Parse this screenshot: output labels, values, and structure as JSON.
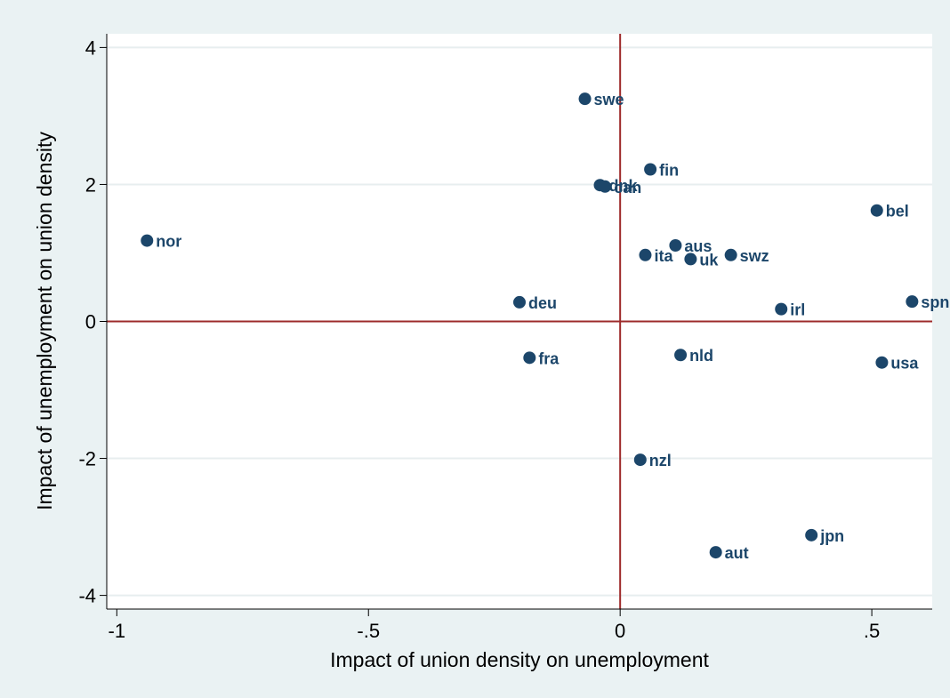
{
  "chart_data": {
    "type": "scatter",
    "title": "",
    "xlabel": "Impact of union density on unemployment",
    "ylabel": "Impact of unemployment on union density",
    "xlim": [
      -1.02,
      0.62
    ],
    "ylim": [
      -4.2,
      4.2
    ],
    "x_ticks": [
      {
        "value": -1,
        "label": "-1"
      },
      {
        "value": -0.5,
        "label": "-.5"
      },
      {
        "value": 0,
        "label": "0"
      },
      {
        "value": 0.5,
        "label": ".5"
      }
    ],
    "y_ticks": [
      {
        "value": 4,
        "label": "4"
      },
      {
        "value": 2,
        "label": "2"
      },
      {
        "value": 0,
        "label": "0"
      },
      {
        "value": -2,
        "label": "-2"
      },
      {
        "value": -4,
        "label": "-4"
      }
    ],
    "reference_lines": {
      "x": 0,
      "y": 0,
      "color": "#9e2b2b"
    },
    "grid": true,
    "marker_color": "#1c466a",
    "points": [
      {
        "label": "swe",
        "x": -0.07,
        "y": 3.25
      },
      {
        "label": "fin",
        "x": 0.06,
        "y": 2.22
      },
      {
        "label": "dnk",
        "x": -0.04,
        "y": 1.99
      },
      {
        "label": "can",
        "x": -0.03,
        "y": 1.97
      },
      {
        "label": "bel",
        "x": 0.51,
        "y": 1.62
      },
      {
        "label": "nor",
        "x": -0.94,
        "y": 1.18
      },
      {
        "label": "aus",
        "x": 0.11,
        "y": 1.11
      },
      {
        "label": "ita",
        "x": 0.05,
        "y": 0.97
      },
      {
        "label": "uk",
        "x": 0.14,
        "y": 0.91
      },
      {
        "label": "swz",
        "x": 0.22,
        "y": 0.97
      },
      {
        "label": "deu",
        "x": -0.2,
        "y": 0.28
      },
      {
        "label": "spn",
        "x": 0.58,
        "y": 0.29
      },
      {
        "label": "irl",
        "x": 0.32,
        "y": 0.18
      },
      {
        "label": "fra",
        "x": -0.18,
        "y": -0.53
      },
      {
        "label": "nld",
        "x": 0.12,
        "y": -0.49
      },
      {
        "label": "usa",
        "x": 0.52,
        "y": -0.6
      },
      {
        "label": "nzl",
        "x": 0.04,
        "y": -2.02
      },
      {
        "label": "jpn",
        "x": 0.38,
        "y": -3.12
      },
      {
        "label": "aut",
        "x": 0.19,
        "y": -3.37
      }
    ]
  }
}
